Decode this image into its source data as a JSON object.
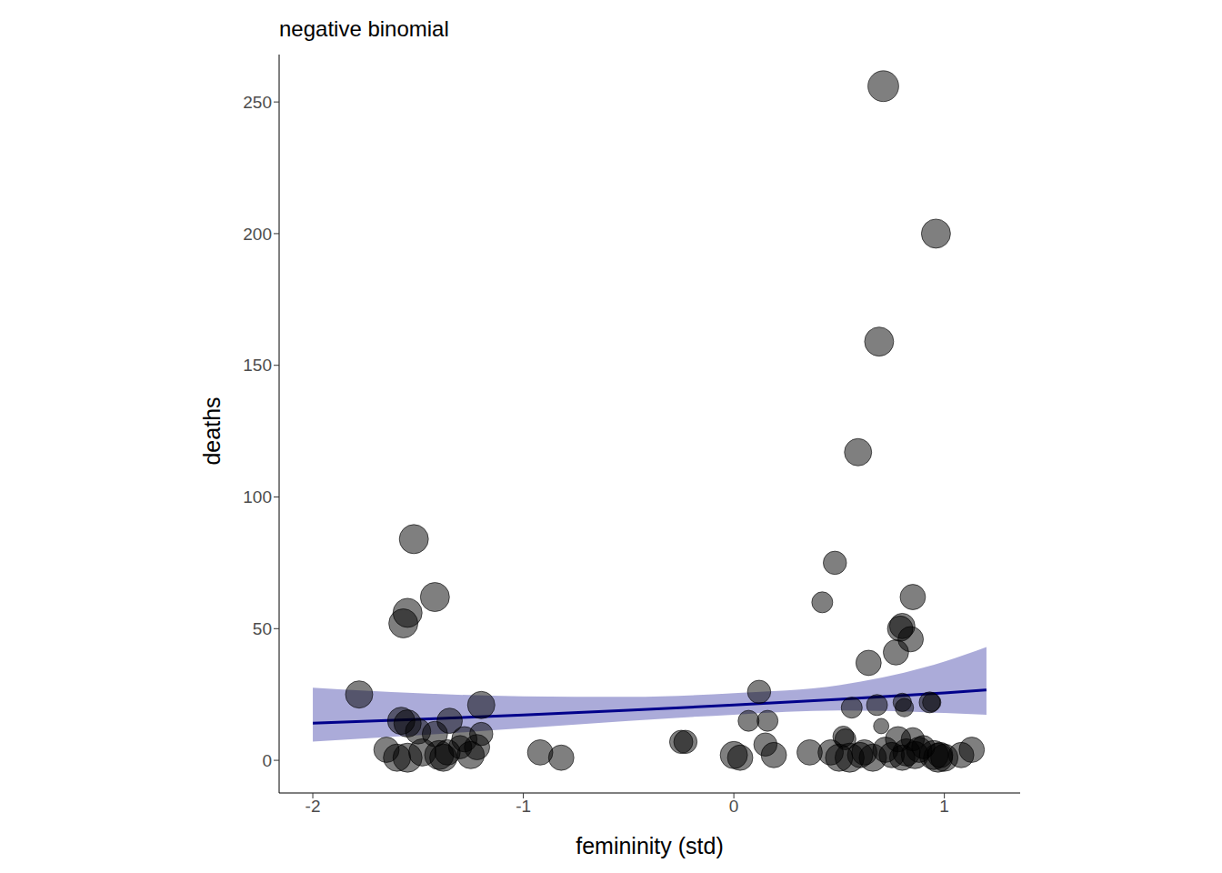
{
  "chart_data": {
    "type": "scatter",
    "title": "negative binomial",
    "x_label": "femininity (std)",
    "y_label": "deaths",
    "xlim": [
      -2.16,
      1.36
    ],
    "ylim": [
      -12.4,
      268
    ],
    "xticks": [
      -2,
      -1,
      0,
      1
    ],
    "yticks": [
      0,
      50,
      100,
      150,
      200,
      250
    ],
    "grid": false,
    "color": "#000000",
    "points": {
      "x": [
        -1.78,
        -1.52,
        -1.42,
        -1.55,
        -1.57,
        -1.58,
        -1.55,
        -1.65,
        -1.6,
        -1.55,
        -1.5,
        -1.48,
        -1.42,
        -1.4,
        -1.38,
        -1.35,
        -1.3,
        -1.28,
        -1.25,
        -1.22,
        -1.2,
        -1.2,
        -1.36,
        -0.92,
        -0.82,
        -0.25,
        -0.23,
        0.0,
        0.03,
        0.07,
        0.12,
        0.15,
        0.16,
        0.19,
        0.36,
        0.71,
        0.96,
        0.69,
        0.59,
        0.48,
        0.42,
        0.85,
        0.8,
        0.79,
        0.84,
        0.77,
        0.64,
        0.56,
        0.68,
        0.8,
        0.81,
        0.93,
        0.94,
        0.7,
        0.46,
        0.52,
        0.53,
        0.5,
        0.55,
        0.6,
        0.62,
        0.66,
        0.72,
        0.75,
        0.78,
        0.82,
        0.85,
        0.88,
        0.9,
        0.95,
        0.97,
        1.0,
        1.08,
        1.13,
        0.8,
        0.86,
        0.98
      ],
      "y": [
        25,
        84,
        62,
        56,
        52,
        15,
        14,
        4,
        1,
        1,
        11,
        3,
        10,
        2,
        1,
        15,
        5,
        8,
        2,
        5,
        21,
        10,
        3,
        3,
        1,
        7,
        7,
        2,
        1,
        15,
        26,
        6,
        15,
        2,
        3,
        256,
        200,
        159,
        117,
        75,
        60,
        62,
        51,
        50,
        46,
        41,
        37,
        20,
        21,
        22,
        20,
        22,
        22,
        13,
        3,
        9,
        8,
        1,
        1,
        2,
        3,
        1,
        4,
        2,
        8,
        3,
        8,
        4,
        5,
        2,
        1,
        1,
        2,
        4,
        1,
        2,
        2
      ],
      "size": [
        7,
        8,
        8,
        8,
        8,
        7,
        7,
        6,
        7,
        8,
        6,
        7,
        6,
        8,
        7,
        6,
        5,
        6,
        7,
        6,
        7,
        5,
        6,
        6,
        6,
        5,
        5,
        7,
        6,
        4,
        5,
        5,
        4,
        6,
        6,
        9,
        8,
        8,
        7,
        5,
        4,
        6,
        6,
        6,
        6,
        6,
        6,
        4,
        4,
        3,
        3,
        4,
        3,
        2,
        6,
        4,
        4,
        7,
        8,
        6,
        6,
        7,
        6,
        6,
        6,
        7,
        5,
        6,
        5,
        8,
        8,
        7,
        6,
        6,
        6,
        7,
        6
      ]
    },
    "fit": {
      "color": "#00008b",
      "x": [
        -2,
        -1.5,
        -1,
        -0.5,
        0,
        0.5,
        1,
        1.2
      ],
      "mean": [
        14.1,
        15.6,
        17.2,
        19.0,
        21.0,
        23.2,
        25.6,
        26.7
      ],
      "lower": [
        7.1,
        9.5,
        12.2,
        15.0,
        17.3,
        18.9,
        18.0,
        17.3
      ],
      "upper": [
        27.6,
        25.5,
        24.3,
        24.1,
        25.5,
        28.5,
        37.5,
        43.0
      ]
    }
  }
}
